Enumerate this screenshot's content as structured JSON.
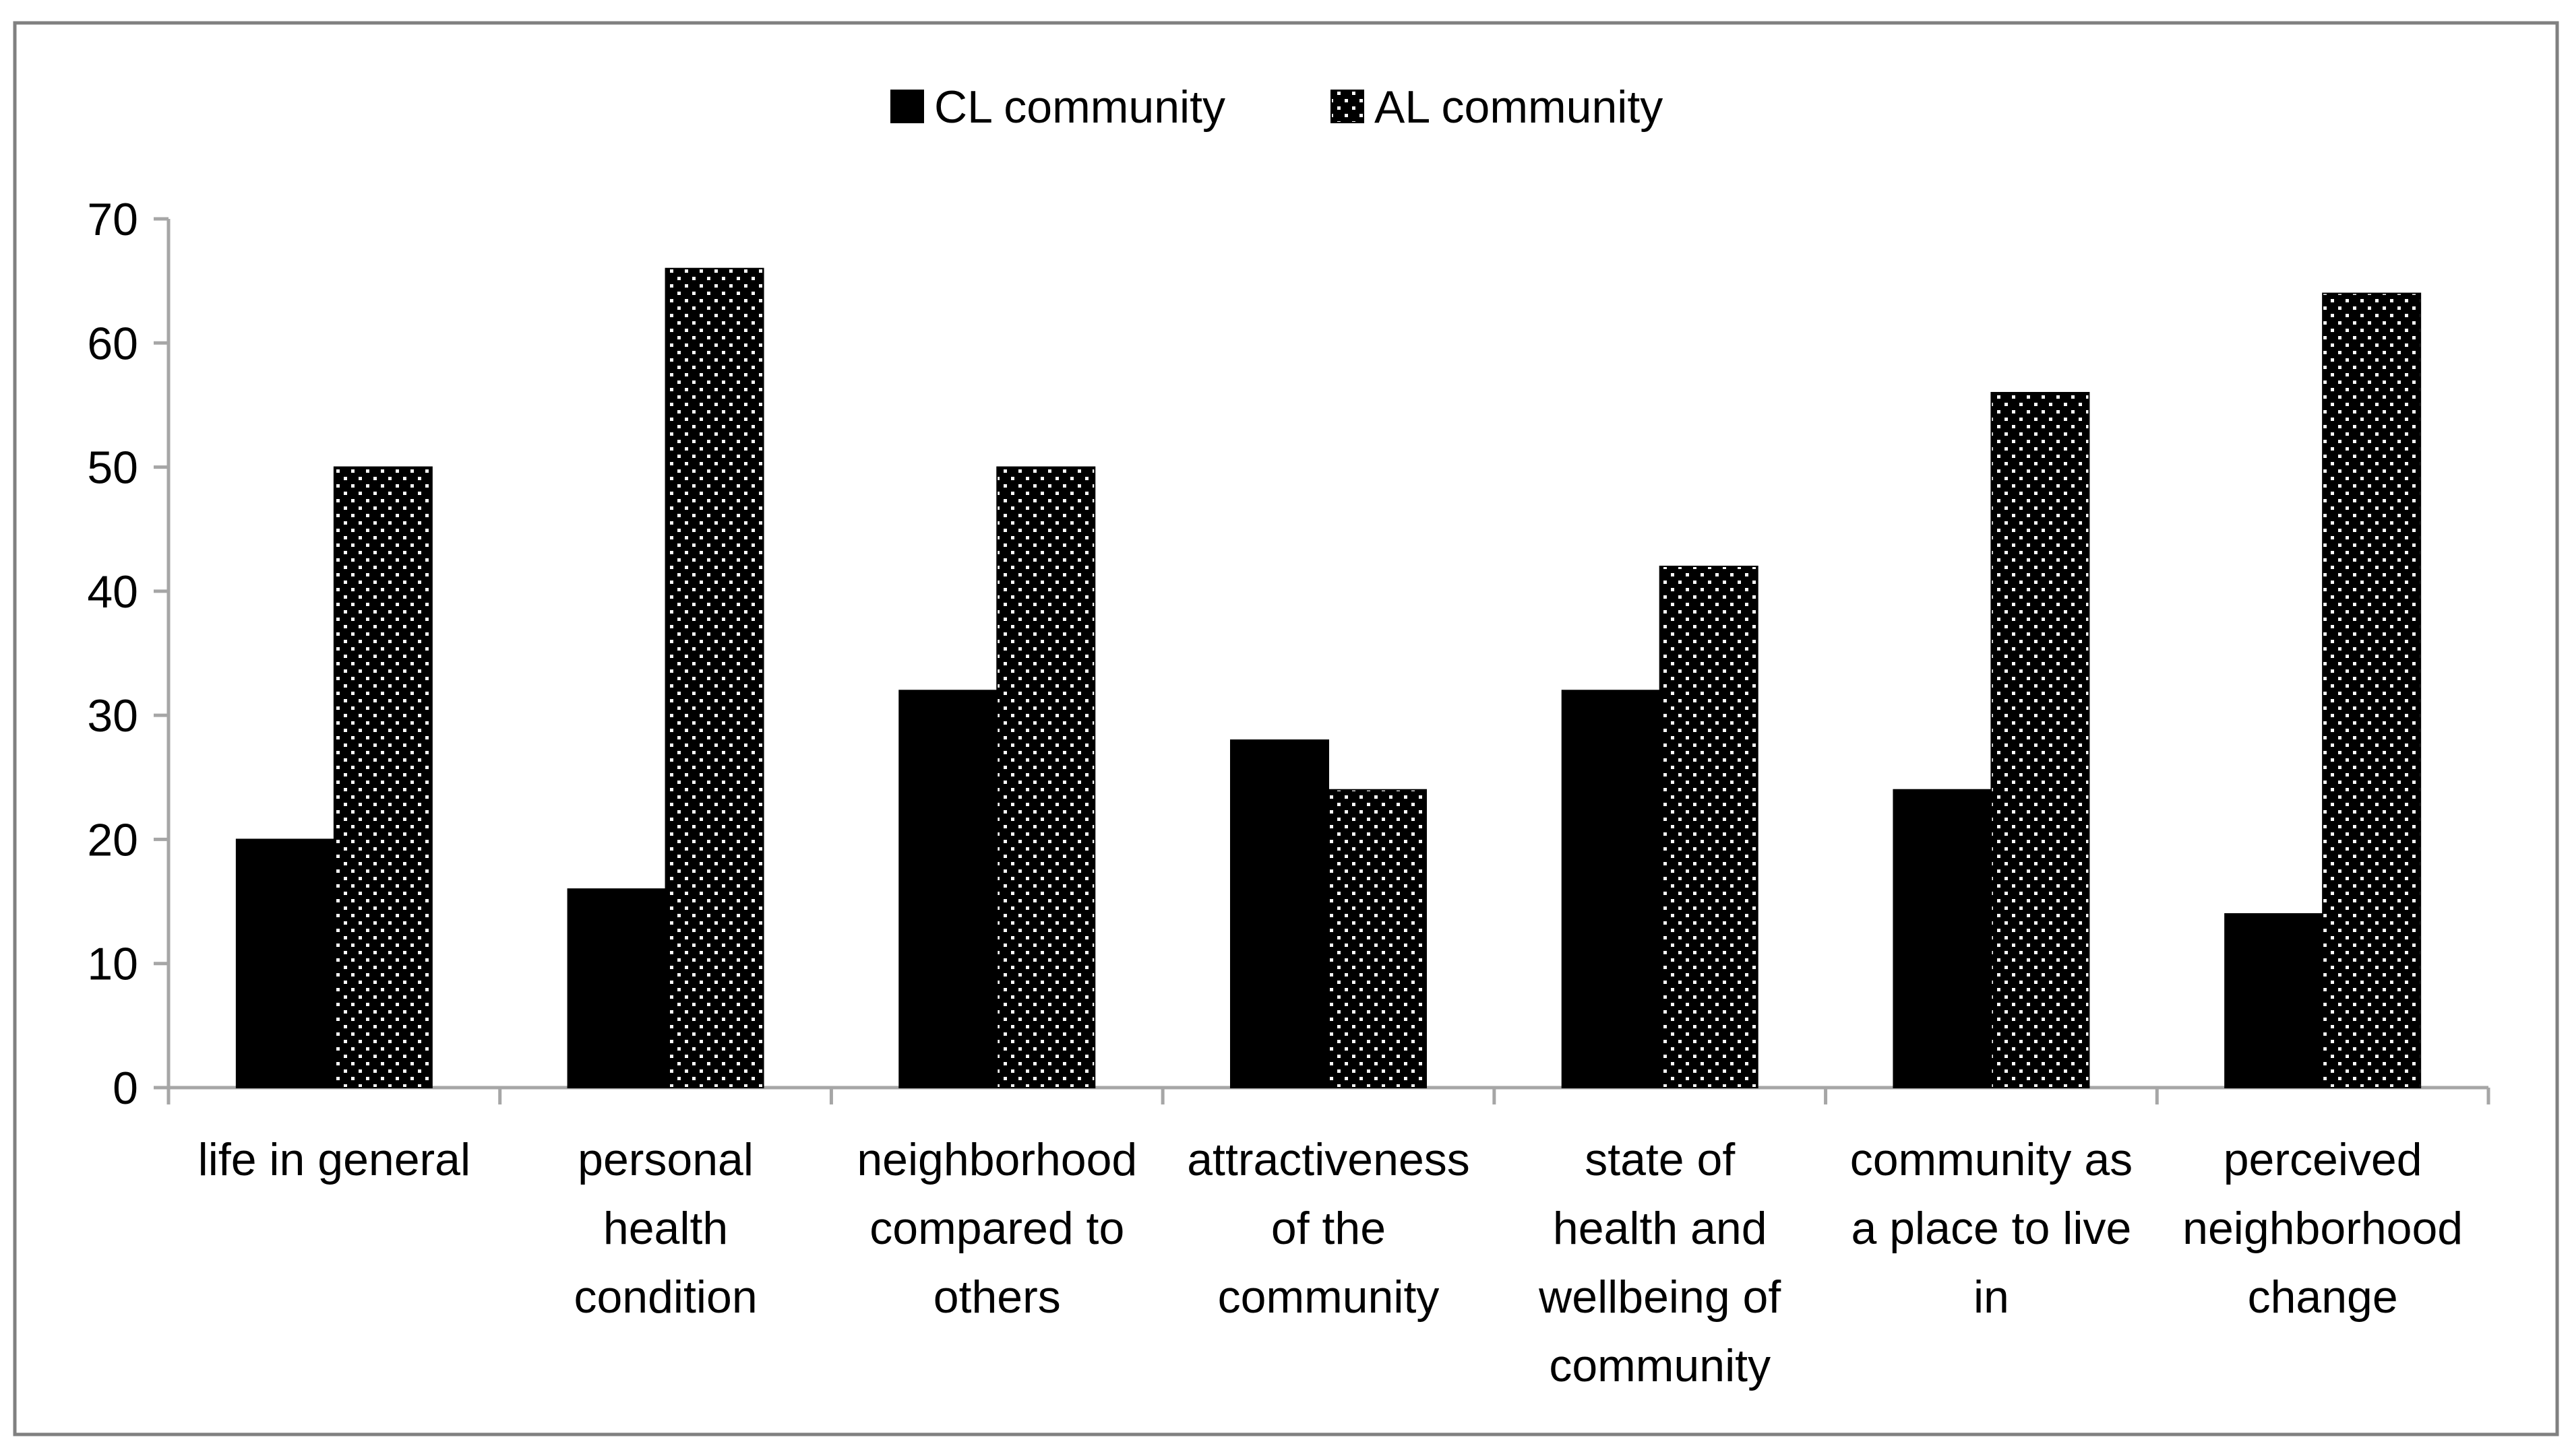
{
  "chart_data": {
    "type": "bar",
    "title": "",
    "xlabel": "",
    "ylabel": "",
    "categories": [
      [
        "life in general"
      ],
      [
        "personal",
        "health",
        "condition"
      ],
      [
        "neighborhood",
        "compared to",
        "others"
      ],
      [
        "attractiveness",
        "of the",
        "community"
      ],
      [
        "state of",
        "health and",
        "wellbeing of",
        "community"
      ],
      [
        "community as",
        "a place to live",
        "in"
      ],
      [
        "perceived",
        "neighborhood",
        "change"
      ]
    ],
    "series": [
      {
        "name": "CL community",
        "values": [
          20,
          16,
          32,
          28,
          32,
          24,
          14
        ],
        "color": "#000000",
        "pattern": "solid"
      },
      {
        "name": "AL community",
        "values": [
          50,
          66,
          50,
          24,
          42,
          56,
          64
        ],
        "color": "#000000",
        "pattern": "dotted"
      }
    ],
    "ylim": [
      0,
      70
    ],
    "yticks": [
      0,
      10,
      20,
      30,
      40,
      50,
      60,
      70
    ],
    "grid": false,
    "legend_position": "top-center"
  }
}
